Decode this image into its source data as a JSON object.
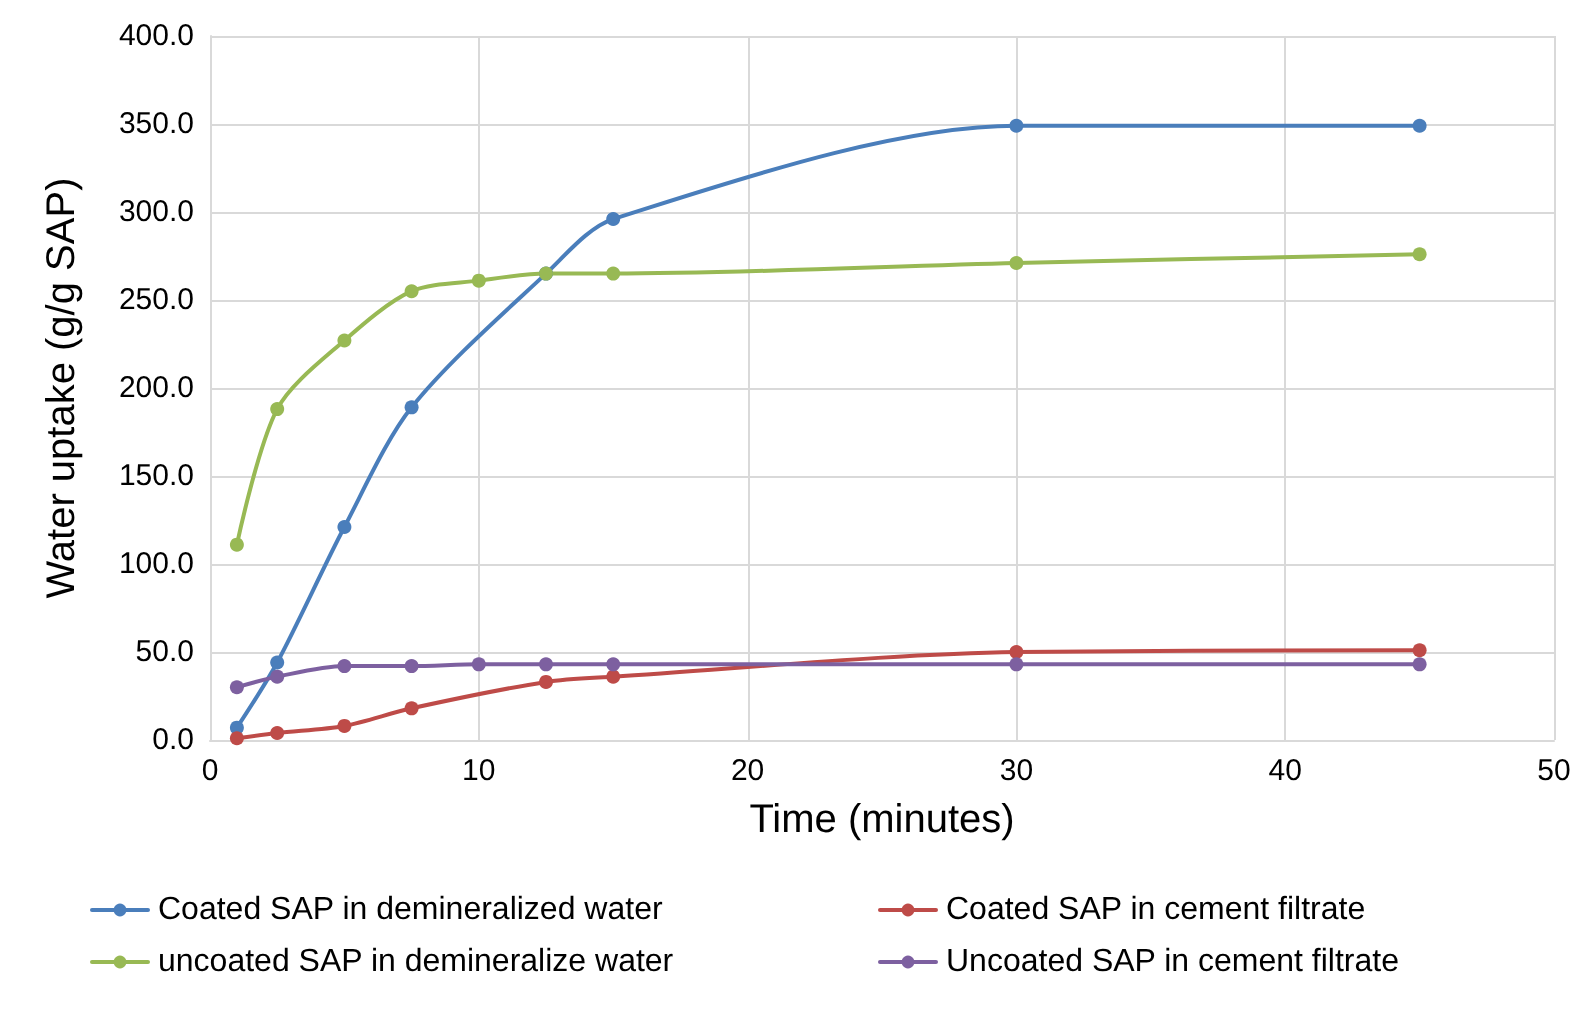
{
  "chart_data": {
    "type": "line",
    "xlabel": "Time (minutes)",
    "ylabel": "Water uptake (g/g SAP)",
    "xlim": [
      0,
      50
    ],
    "xticks": [
      0,
      10,
      20,
      30,
      40,
      50
    ],
    "ylim": [
      0,
      400
    ],
    "yticks": [
      {
        "value": 0,
        "label": "0.0"
      },
      {
        "value": 50,
        "label": "50.0"
      },
      {
        "value": 100,
        "label": "100.0"
      },
      {
        "value": 150,
        "label": "150.0"
      },
      {
        "value": 200,
        "label": "200.0"
      },
      {
        "value": 250,
        "label": "250.0"
      },
      {
        "value": 300,
        "label": "300.0"
      },
      {
        "value": 350,
        "label": "350.0"
      },
      {
        "value": 400,
        "label": "400.0"
      }
    ],
    "grid": true,
    "legend": "bottom",
    "marker": "circle",
    "line_style": "solid",
    "series": [
      {
        "name": "Coated SAP in demineralized water",
        "color": "#4a7ebb",
        "x": [
          1,
          2.5,
          5,
          7.5,
          12.5,
          15,
          30,
          45
        ],
        "values": [
          7,
          44,
          121,
          189,
          265,
          296,
          349,
          349
        ]
      },
      {
        "name": "Coated SAP in cement filtrate",
        "color": "#be4b48",
        "x": [
          1,
          2.5,
          5,
          7.5,
          12.5,
          15,
          30,
          45
        ],
        "values": [
          1,
          4,
          8,
          18,
          33,
          36,
          50,
          51
        ]
      },
      {
        "name": "uncoated SAP in demineralize water",
        "color": "#98b954",
        "x": [
          1,
          2.5,
          5,
          7.5,
          10,
          12.5,
          15,
          30,
          45
        ],
        "values": [
          111,
          188,
          227,
          255,
          261,
          265,
          265,
          271,
          276
        ]
      },
      {
        "name": "Uncoated SAP in cement filtrate",
        "color": "#7d60a0",
        "x": [
          1,
          2.5,
          5,
          7.5,
          10,
          12.5,
          15,
          30,
          45
        ],
        "values": [
          30,
          36,
          42,
          42,
          43,
          43,
          43,
          43,
          43
        ]
      }
    ]
  }
}
